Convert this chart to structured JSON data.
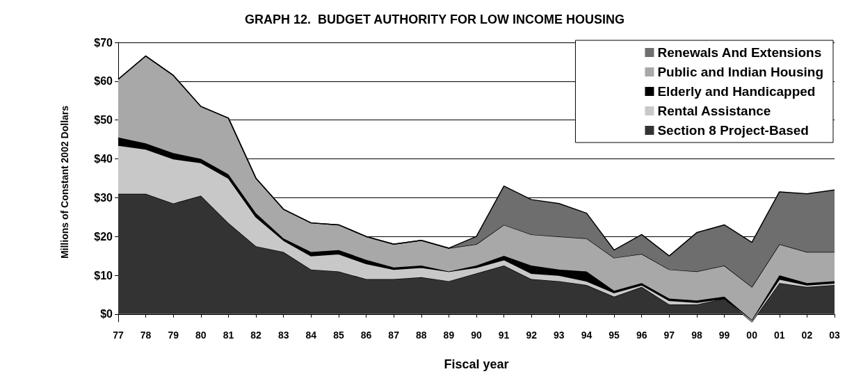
{
  "chart_data": {
    "type": "area",
    "title": "GRAPH 12.  BUDGET AUTHORITY FOR LOW INCOME HOUSING",
    "xlabel": "Fiscal year",
    "ylabel": "Millions of Constant 2002 Dollars",
    "categories": [
      "77",
      "78",
      "79",
      "80",
      "81",
      "82",
      "83",
      "84",
      "85",
      "86",
      "87",
      "88",
      "89",
      "90",
      "91",
      "92",
      "93",
      "94",
      "95",
      "96",
      "97",
      "98",
      "99",
      "00",
      "01",
      "02",
      "03"
    ],
    "stacked": true,
    "series": [
      {
        "name": "Section 8 Project-Based",
        "color": "#333333",
        "values": [
          31,
          31,
          28.5,
          30.5,
          23.5,
          17.5,
          16,
          11.5,
          11,
          9,
          9,
          9.5,
          8.5,
          10.5,
          12.5,
          9,
          8.5,
          7.5,
          4.5,
          7,
          2.5,
          2.5,
          4,
          -2,
          8,
          7,
          7.5
        ]
      },
      {
        "name": "Rental Assistance",
        "color": "#c8c8c8",
        "values": [
          12.5,
          11.5,
          11.5,
          8.5,
          11.5,
          7.5,
          3,
          3.5,
          4.5,
          4,
          2.5,
          2.5,
          2.5,
          1.5,
          1.5,
          1.5,
          1.5,
          1,
          1,
          0.5,
          1,
          0.5,
          0,
          0.5,
          1,
          0.5,
          0.5
        ]
      },
      {
        "name": "Elderly and Handicapped",
        "color": "#000000",
        "values": [
          2,
          1.5,
          1.5,
          1,
          1,
          1,
          0.5,
          1,
          1,
          1,
          0.5,
          0.5,
          0,
          0.5,
          1,
          2,
          1.5,
          2.5,
          0.5,
          0.5,
          0.5,
          0.5,
          0.5,
          0,
          1,
          0.5,
          0.5
        ]
      },
      {
        "name": "Public and Indian Housing",
        "color": "#a8a8a8",
        "values": [
          15,
          22.5,
          20,
          13.5,
          14.5,
          9,
          7.5,
          7.5,
          6.5,
          6,
          6,
          6.5,
          6,
          5.5,
          8,
          8,
          8.5,
          8.5,
          8.5,
          7.5,
          7.5,
          7.5,
          8,
          8.5,
          8,
          8,
          7.5
        ]
      },
      {
        "name": "Renewals And Extensions",
        "color": "#6e6e6e",
        "values": [
          0,
          0,
          0,
          0,
          0,
          0,
          0,
          0,
          0,
          0,
          0,
          0,
          0,
          2,
          10,
          9,
          8.5,
          6.5,
          2,
          5,
          3.5,
          10,
          10.5,
          11.5,
          13.5,
          15,
          16
        ]
      }
    ],
    "ylim": [
      -2,
      70
    ],
    "yticks": [
      {
        "value": 0,
        "label": "$0"
      },
      {
        "value": 10,
        "label": "$10"
      },
      {
        "value": 20,
        "label": "$20"
      },
      {
        "value": 30,
        "label": "$30"
      },
      {
        "value": 40,
        "label": "$40"
      },
      {
        "value": 50,
        "label": "$50"
      },
      {
        "value": 60,
        "label": "$60"
      },
      {
        "value": 70,
        "label": "$70"
      }
    ],
    "grid": "y",
    "legend": "top right",
    "marker": "none"
  }
}
